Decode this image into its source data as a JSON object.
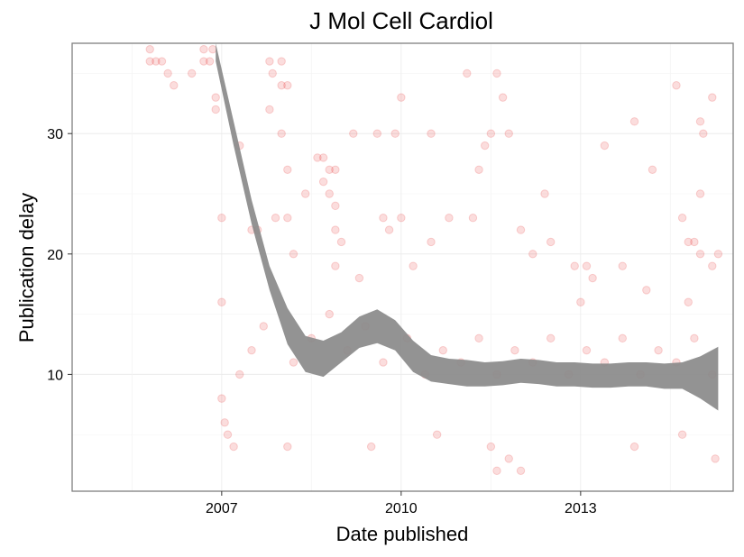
{
  "chart_data": {
    "type": "scatter",
    "title": "J Mol Cell Cardiol",
    "xlabel": "Date published",
    "ylabel": "Publication delay",
    "x_ticks": [
      "2007",
      "2010",
      "2013"
    ],
    "y_ticks": [
      10,
      20,
      30
    ],
    "xlim": [
      2004.5,
      2015.55
    ],
    "ylim": [
      0.3,
      37.5
    ],
    "grid": true,
    "point_color": "#e41a1c",
    "point_opacity": 0.15,
    "band_color": "#8a8a8a",
    "series": [
      {
        "type": "scatter",
        "points": [
          [
            2005.8,
            37
          ],
          [
            2005.8,
            36
          ],
          [
            2005.9,
            36
          ],
          [
            2006.0,
            36
          ],
          [
            2006.1,
            35
          ],
          [
            2006.2,
            34
          ],
          [
            2006.5,
            35
          ],
          [
            2006.7,
            37
          ],
          [
            2006.7,
            36
          ],
          [
            2006.8,
            36
          ],
          [
            2006.85,
            37
          ],
          [
            2006.9,
            33
          ],
          [
            2006.9,
            32
          ],
          [
            2007.0,
            23
          ],
          [
            2007.0,
            16
          ],
          [
            2007.0,
            8
          ],
          [
            2007.05,
            6
          ],
          [
            2007.1,
            5
          ],
          [
            2007.2,
            4
          ],
          [
            2007.3,
            29
          ],
          [
            2007.5,
            22
          ],
          [
            2007.6,
            22
          ],
          [
            2007.8,
            36
          ],
          [
            2007.85,
            35
          ],
          [
            2007.8,
            32
          ],
          [
            2007.9,
            23
          ],
          [
            2008.0,
            36
          ],
          [
            2008.0,
            34
          ],
          [
            2008.1,
            34
          ],
          [
            2008.0,
            30
          ],
          [
            2008.1,
            27
          ],
          [
            2008.1,
            23
          ],
          [
            2008.2,
            20
          ],
          [
            2008.4,
            25
          ],
          [
            2008.6,
            28
          ],
          [
            2008.7,
            28
          ],
          [
            2008.7,
            26
          ],
          [
            2008.8,
            25
          ],
          [
            2008.8,
            27
          ],
          [
            2008.9,
            27
          ],
          [
            2008.9,
            24
          ],
          [
            2008.9,
            22
          ],
          [
            2009.0,
            21
          ],
          [
            2009.2,
            30
          ],
          [
            2009.6,
            30
          ],
          [
            2009.7,
            23
          ],
          [
            2009.8,
            22
          ],
          [
            2009.9,
            30
          ],
          [
            2010.0,
            33
          ],
          [
            2010.0,
            23
          ],
          [
            2010.5,
            30
          ],
          [
            2010.5,
            21
          ],
          [
            2010.8,
            23
          ],
          [
            2011.1,
            35
          ],
          [
            2011.2,
            23
          ],
          [
            2011.3,
            27
          ],
          [
            2011.4,
            29
          ],
          [
            2011.5,
            30
          ],
          [
            2011.6,
            35
          ],
          [
            2011.7,
            33
          ],
          [
            2011.8,
            30
          ],
          [
            2012.0,
            22
          ],
          [
            2012.2,
            20
          ],
          [
            2012.4,
            25
          ],
          [
            2012.5,
            21
          ],
          [
            2012.9,
            19
          ],
          [
            2013.1,
            19
          ],
          [
            2013.2,
            18
          ],
          [
            2013.4,
            29
          ],
          [
            2013.7,
            19
          ],
          [
            2013.9,
            31
          ],
          [
            2014.2,
            27
          ],
          [
            2014.6,
            34
          ],
          [
            2014.7,
            23
          ],
          [
            2014.8,
            21
          ],
          [
            2014.9,
            21
          ],
          [
            2015.0,
            20
          ],
          [
            2015.0,
            31
          ],
          [
            2015.05,
            30
          ],
          [
            2015.0,
            25
          ],
          [
            2015.2,
            33
          ],
          [
            2015.3,
            20
          ],
          [
            2015.2,
            19
          ],
          [
            2011.6,
            2
          ],
          [
            2012.0,
            2
          ],
          [
            2011.8,
            3
          ],
          [
            2015.25,
            3
          ],
          [
            2011.5,
            4
          ],
          [
            2007.3,
            10
          ],
          [
            2007.5,
            12
          ],
          [
            2007.7,
            14
          ],
          [
            2008.2,
            11
          ],
          [
            2008.5,
            13
          ],
          [
            2008.8,
            15
          ],
          [
            2009.1,
            12
          ],
          [
            2009.4,
            14
          ],
          [
            2009.7,
            11
          ],
          [
            2010.1,
            13
          ],
          [
            2010.4,
            10
          ],
          [
            2010.7,
            12
          ],
          [
            2011.0,
            11
          ],
          [
            2011.3,
            13
          ],
          [
            2011.6,
            10
          ],
          [
            2011.9,
            12
          ],
          [
            2012.2,
            11
          ],
          [
            2012.5,
            13
          ],
          [
            2012.8,
            10
          ],
          [
            2013.1,
            12
          ],
          [
            2013.4,
            11
          ],
          [
            2013.7,
            13
          ],
          [
            2014.0,
            10
          ],
          [
            2014.3,
            12
          ],
          [
            2014.6,
            11
          ],
          [
            2014.9,
            13
          ],
          [
            2015.2,
            10
          ],
          [
            2009.5,
            4
          ],
          [
            2010.6,
            5
          ],
          [
            2013.9,
            4
          ],
          [
            2014.7,
            5
          ],
          [
            2008.1,
            4
          ],
          [
            2008.9,
            19
          ],
          [
            2009.3,
            18
          ],
          [
            2010.2,
            19
          ],
          [
            2013.0,
            16
          ],
          [
            2014.1,
            17
          ],
          [
            2014.8,
            16
          ]
        ]
      },
      {
        "type": "smooth",
        "name": "",
        "x": [
          2006.9,
          2007.2,
          2007.5,
          2007.8,
          2008.1,
          2008.4,
          2008.7,
          2009.0,
          2009.3,
          2009.6,
          2009.9,
          2010.2,
          2010.5,
          2010.8,
          2011.1,
          2011.4,
          2011.7,
          2012.0,
          2012.3,
          2012.6,
          2012.9,
          2013.2,
          2013.5,
          2013.8,
          2014.1,
          2014.4,
          2014.7,
          2015.0,
          2015.3
        ],
        "upper": [
          38,
          31,
          24.5,
          19,
          15.5,
          13.2,
          12.8,
          13.5,
          14.8,
          15.4,
          14.5,
          12.8,
          11.6,
          11.3,
          11.2,
          11.0,
          11.1,
          11.3,
          11.2,
          11.0,
          11.0,
          10.9,
          10.9,
          11.0,
          11.0,
          10.9,
          11.0,
          11.5,
          12.3
        ],
        "lower": [
          36,
          29,
          22.5,
          17,
          12.5,
          10.2,
          9.8,
          11.0,
          12.2,
          12.6,
          12.0,
          10.2,
          9.4,
          9.2,
          9.0,
          9.0,
          9.1,
          9.3,
          9.2,
          9.0,
          9.0,
          8.9,
          8.9,
          9.0,
          9.0,
          8.8,
          8.8,
          8.0,
          7.0
        ]
      }
    ]
  }
}
